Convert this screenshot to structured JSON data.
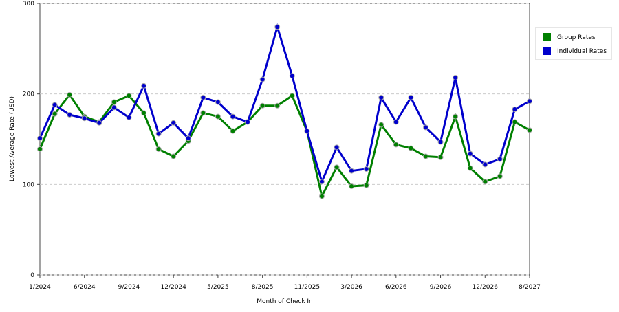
{
  "chart_data": {
    "type": "line",
    "x_label": "Month of Check In",
    "y_label": "Lowest Average Rate (USD)",
    "categories": [
      "1/2024",
      null,
      null,
      "6/2024",
      null,
      null,
      "9/2024",
      null,
      null,
      "12/2024",
      null,
      null,
      "5/2025",
      null,
      null,
      "8/2025",
      null,
      null,
      "11/2025",
      null,
      null,
      "3/2026",
      null,
      null,
      "6/2026",
      null,
      null,
      "9/2026",
      null,
      null,
      "12/2026",
      null,
      null,
      "8/2027"
    ],
    "series": [
      {
        "name": "Group Rates",
        "color": "#008000",
        "values": [
          139,
          178,
          199,
          175,
          169,
          191,
          198,
          179,
          139,
          131,
          148,
          179,
          175,
          159,
          169,
          187,
          187,
          198,
          159,
          87,
          119,
          98,
          99,
          166,
          144,
          140,
          131,
          130,
          175,
          118,
          103,
          109,
          169,
          160
        ]
      },
      {
        "name": "Individual Rates",
        "color": "#0000cc",
        "values": [
          151,
          188,
          177,
          173,
          168,
          185,
          174,
          209,
          156,
          168,
          151,
          196,
          191,
          175,
          169,
          216,
          274,
          220,
          159,
          103,
          141,
          115,
          117,
          196,
          169,
          196,
          163,
          147,
          218,
          134,
          122,
          128,
          183,
          192
        ]
      }
    ],
    "ylim": [
      0,
      300
    ],
    "yticks": [
      0,
      100,
      200,
      300
    ],
    "grid": true,
    "legend": "right"
  }
}
